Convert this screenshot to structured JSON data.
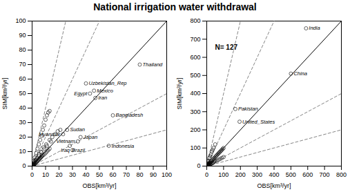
{
  "title": "National irrigation water withdrawal",
  "chart_data": [
    {
      "type": "scatter",
      "xlabel": "OBS[km³/yr]",
      "ylabel": "SIM[km³/yr]",
      "xlim": [
        0,
        100
      ],
      "ylim": [
        0,
        100
      ],
      "xticks": [
        0,
        10,
        20,
        30,
        40,
        50,
        60,
        70,
        80,
        90,
        100
      ],
      "yticks": [
        0,
        10,
        20,
        30,
        40,
        50,
        60,
        70,
        80,
        90,
        100
      ],
      "color": "black",
      "marker": "circle",
      "x": [
        0.3,
        0.5,
        0.8,
        1.0,
        1.2,
        1.5,
        2.0,
        2.5,
        3.0,
        3.5,
        4.0,
        4.5,
        5.0,
        5.5,
        6.0,
        6.5,
        7.0,
        7.5,
        8.0,
        9.0,
        10.0,
        11.0,
        12.0,
        13.0,
        1.0,
        2.0,
        3.0,
        4.0,
        5.0,
        6.0,
        7.0,
        8.0,
        9.0,
        10.0,
        11.0,
        12.0,
        13.0,
        1.5,
        2.5,
        3.5,
        5.0,
        6.5,
        8.5,
        10.5,
        13.0,
        15.0,
        17.0,
        19.0,
        21.0,
        1.0,
        2.0,
        3.0,
        5.0,
        7.0,
        9.0,
        11.0,
        14.0
      ],
      "values": [
        0.2,
        0.4,
        0.6,
        0.8,
        1.0,
        1.2,
        1.5,
        2.0,
        2.5,
        3.0,
        3.5,
        4.0,
        4.5,
        5.0,
        5.5,
        6.0,
        6.5,
        7.0,
        7.5,
        8.0,
        9.0,
        10.0,
        11.0,
        12.0,
        3.5,
        6.0,
        9.0,
        12.0,
        15.0,
        18.0,
        21.0,
        25.0,
        28.0,
        32.0,
        35.0,
        37.0,
        38.0,
        2.0,
        4.0,
        5.5,
        8.0,
        10.0,
        13.0,
        15.0,
        18.0,
        20.0,
        22.0,
        24.0,
        25.0,
        1.5,
        3.0,
        4.5,
        7.0,
        9.5,
        12.0,
        14.0,
        17.0
      ],
      "reference_lines": [
        {
          "slope": 2.0,
          "color": "#666666",
          "line_style": "dashed"
        },
        {
          "slope": 0.5,
          "color": "#666666",
          "line_style": "dashed"
        },
        {
          "slope": 4.0,
          "color": "#666666",
          "line_style": "dashed"
        },
        {
          "slope": 0.25,
          "color": "#666666",
          "line_style": "dashed"
        },
        {
          "slope": 1.0,
          "color": "black",
          "line_style": "solid"
        }
      ],
      "annotations": [
        {
          "x": 80.0,
          "y": 70.0,
          "text": "Thailand"
        },
        {
          "x": 40.0,
          "y": 57.0,
          "text": "Uzbekistan_Rep"
        },
        {
          "x": 46.0,
          "y": 52.0,
          "text": "Mexico"
        },
        {
          "x": 43.0,
          "y": 50.0,
          "text": "Egypt"
        },
        {
          "x": 47.0,
          "y": 47.0,
          "text": "Iran"
        },
        {
          "x": 60.0,
          "y": 35.0,
          "text": "Bangladesh"
        },
        {
          "x": 26.0,
          "y": 25.0,
          "text": "Sudan"
        },
        {
          "x": 23.0,
          "y": 22.0,
          "text": "Myanmar"
        },
        {
          "x": 36.0,
          "y": 20.0,
          "text": "Japan"
        },
        {
          "x": 34.0,
          "y": 17.0,
          "text": "Vietnam"
        },
        {
          "x": 28.0,
          "y": 14.0,
          "text": "Brazil"
        },
        {
          "x": 30.0,
          "y": 11.0,
          "text": "Iraq"
        },
        {
          "x": 57.0,
          "y": 14.0,
          "text": "Indonesia"
        }
      ]
    },
    {
      "type": "scatter",
      "xlabel": "OBS[km³/yr]",
      "ylabel": "SIM[km³/yr]",
      "xlim": [
        0,
        800
      ],
      "ylim": [
        0,
        800
      ],
      "xticks": [
        0,
        100,
        200,
        300,
        400,
        500,
        600,
        700,
        800
      ],
      "yticks": [
        0,
        100,
        200,
        300,
        400,
        500,
        600,
        700,
        800
      ],
      "color": "black",
      "marker": "circle",
      "x": [
        5,
        8,
        10,
        12,
        15,
        18,
        20,
        25,
        30,
        35,
        40,
        45,
        50,
        55,
        60,
        65,
        70,
        75,
        80,
        85,
        90,
        95,
        100,
        5,
        8,
        10,
        15,
        20,
        25,
        30,
        35,
        40,
        50,
        5,
        8,
        10,
        15,
        20,
        25,
        30,
        35,
        40,
        45,
        50,
        60,
        70,
        80,
        90,
        100
      ],
      "values": [
        5,
        8,
        10,
        12,
        15,
        18,
        20,
        25,
        30,
        35,
        40,
        45,
        50,
        55,
        60,
        65,
        70,
        75,
        80,
        85,
        90,
        95,
        100,
        15,
        25,
        30,
        45,
        55,
        65,
        80,
        90,
        100,
        120,
        3,
        4,
        5,
        8,
        10,
        12,
        15,
        18,
        20,
        25,
        28,
        30,
        35,
        40,
        45,
        50
      ],
      "reference_lines": [
        {
          "slope": 2.0,
          "color": "#666666",
          "line_style": "dashed"
        },
        {
          "slope": 0.5,
          "color": "#666666",
          "line_style": "dashed"
        },
        {
          "slope": 4.0,
          "color": "#666666",
          "line_style": "dashed"
        },
        {
          "slope": 0.25,
          "color": "#666666",
          "line_style": "dashed"
        },
        {
          "slope": 1.0,
          "color": "black",
          "line_style": "solid"
        }
      ],
      "annotations": [
        {
          "text": "N= 127"
        },
        {
          "x": 590,
          "y": 760,
          "text": "India"
        },
        {
          "x": 500,
          "y": 510,
          "text": "China"
        },
        {
          "x": 170,
          "y": 315,
          "text": "Pakistan"
        },
        {
          "x": 195,
          "y": 245,
          "text": "United_States"
        }
      ]
    }
  ]
}
